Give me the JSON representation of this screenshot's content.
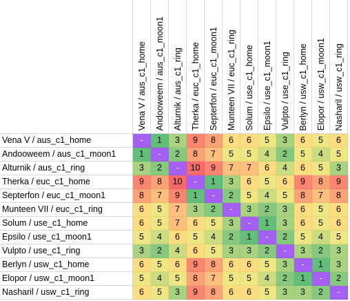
{
  "columns": [
    "Vena V / aus_c1_home",
    "Andooweem / aus_c1_moon1",
    "Alturnik / aus_c1_ring",
    "Therka / euc_c1_home",
    "Septerfon / euc_c1_moon1",
    "Munteen VII / euc_c1_ring",
    "Solum / use_c1_home",
    "Epsilo / use_c1_moon1",
    "Vulpto / use_c1_ring",
    "Berlyn / usw_c1_home",
    "Elopor / usw_c1_moon1",
    "Nasharil / usw_c1_ring"
  ],
  "rows": [
    {
      "label": "Vena V / aus_c1_home",
      "values": [
        "-",
        "1",
        "3",
        "9",
        "8",
        "6",
        "6",
        "5",
        "3",
        "6",
        "5",
        "6"
      ]
    },
    {
      "label": "Andooweem / aus_c1_moon1",
      "values": [
        "1",
        "-",
        "2",
        "8",
        "7",
        "5",
        "5",
        "4",
        "2",
        "5",
        "4",
        "5"
      ]
    },
    {
      "label": "Alturnik / aus_c1_ring",
      "values": [
        "3",
        "2",
        "-",
        "10",
        "9",
        "7",
        "7",
        "6",
        "4",
        "6",
        "5",
        "3"
      ]
    },
    {
      "label": "Therka / euc_c1_home",
      "values": [
        "9",
        "8",
        "10",
        "-",
        "1",
        "3",
        "6",
        "5",
        "6",
        "9",
        "8",
        "9"
      ]
    },
    {
      "label": "Septerfon / euc_c1_moon1",
      "values": [
        "8",
        "7",
        "9",
        "1",
        "-",
        "2",
        "5",
        "4",
        "5",
        "8",
        "7",
        "8"
      ]
    },
    {
      "label": "Munteen VII / euc_c1_ring",
      "values": [
        "6",
        "5",
        "7",
        "3",
        "2",
        "-",
        "3",
        "2",
        "3",
        "6",
        "5",
        "6"
      ]
    },
    {
      "label": "Solum / use_c1_home",
      "values": [
        "6",
        "5",
        "7",
        "6",
        "5",
        "3",
        "-",
        "1",
        "3",
        "6",
        "5",
        "6"
      ]
    },
    {
      "label": "Epsilo / use_c1_moon1",
      "values": [
        "5",
        "4",
        "6",
        "5",
        "4",
        "2",
        "1",
        "-",
        "2",
        "5",
        "4",
        "5"
      ]
    },
    {
      "label": "Vulpto / use_c1_ring",
      "values": [
        "3",
        "2",
        "4",
        "6",
        "5",
        "3",
        "3",
        "2",
        "-",
        "3",
        "2",
        "3"
      ]
    },
    {
      "label": "Berlyn / usw_c1_home",
      "values": [
        "6",
        "5",
        "6",
        "9",
        "8",
        "6",
        "6",
        "5",
        "3",
        "-",
        "1",
        "3"
      ]
    },
    {
      "label": "Elopor / usw_c1_moon1",
      "values": [
        "5",
        "4",
        "5",
        "8",
        "7",
        "5",
        "5",
        "4",
        "2",
        "1",
        "-",
        "2"
      ]
    },
    {
      "label": "Nasharil / usw_c1_ring",
      "values": [
        "6",
        "5",
        "3",
        "9",
        "8",
        "6",
        "6",
        "5",
        "3",
        "3",
        "2",
        "-"
      ]
    }
  ],
  "colors": {
    "diagonal": "#a55ff2",
    "low": "#63be7b",
    "mid": "#ffeb84",
    "high": "#f8696b"
  },
  "scale": {
    "min": 1,
    "mid": 5.5,
    "max": 10
  }
}
